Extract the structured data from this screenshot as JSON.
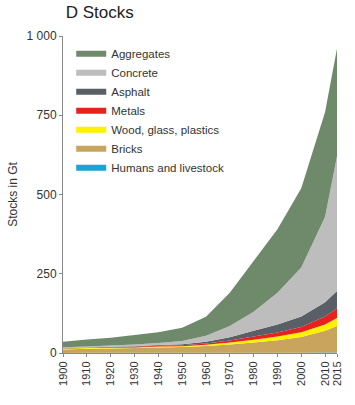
{
  "chart_data": {
    "type": "area",
    "title": "D Stocks",
    "y_label": "Stocks in Gt",
    "stacked": true,
    "grid": false,
    "legend": "upper left",
    "x": [
      1900,
      1910,
      1920,
      1930,
      1940,
      1950,
      1960,
      1970,
      1980,
      1990,
      2000,
      2010,
      2015
    ],
    "xlim": [
      1900,
      2015
    ],
    "xticks": [
      1900,
      1910,
      1920,
      1930,
      1940,
      1950,
      1960,
      1970,
      1980,
      1990,
      2000,
      2010,
      2015
    ],
    "ylim": [
      0,
      1000
    ],
    "yticks": [
      0,
      250,
      500,
      750,
      {
        "value": 1000,
        "label": "1 000"
      }
    ],
    "series": [
      {
        "name": "Humans and livestock",
        "color": "#1aa3d4",
        "values": [
          0.3,
          0.4,
          0.4,
          0.5,
          0.5,
          0.6,
          0.7,
          0.8,
          0.9,
          1,
          1.1,
          1.2,
          1.3
        ]
      },
      {
        "name": "Bricks",
        "color": "#c9a45c",
        "values": [
          11,
          13,
          14,
          15,
          17,
          18,
          21,
          26,
          32,
          39,
          49,
          69,
          84
        ]
      },
      {
        "name": "Wood, glass, plastics",
        "color": "#fff200",
        "values": [
          2,
          2,
          2,
          2,
          3,
          3,
          4,
          6,
          9,
          12,
          15,
          20,
          25
        ]
      },
      {
        "name": "Metals",
        "color": "#e8211e",
        "values": [
          1,
          1,
          2,
          2,
          2,
          3,
          4,
          7,
          10,
          13,
          17,
          25,
          30
        ]
      },
      {
        "name": "Asphalt",
        "color": "#5a5e66",
        "values": [
          1,
          1,
          1,
          2,
          3,
          3,
          6,
          10,
          18,
          25,
          33,
          45,
          55
        ]
      },
      {
        "name": "Concrete",
        "color": "#bdbdbd",
        "values": [
          3,
          3,
          4,
          5,
          6,
          10,
          19,
          35,
          60,
          100,
          155,
          270,
          425
        ]
      },
      {
        "name": "Aggregates",
        "color": "#6f8a6a",
        "values": [
          17,
          22,
          25,
          30,
          34,
          42,
          60,
          105,
          160,
          200,
          250,
          330,
          340
        ]
      }
    ]
  }
}
